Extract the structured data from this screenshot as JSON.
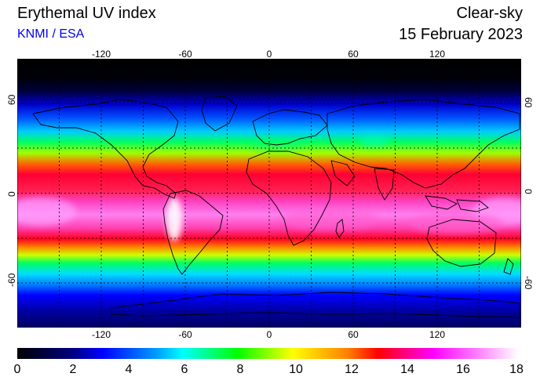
{
  "header": {
    "title": "Erythemal UV index",
    "source": "KNMI / ESA",
    "mode": "Clear-sky",
    "date": "15 February 2023"
  },
  "map": {
    "projection": "equirectangular",
    "lon_range": [
      -180,
      180
    ],
    "lat_range": [
      -90,
      90
    ],
    "top_ticks": [
      "-120",
      "-60",
      "0",
      "60",
      "120"
    ],
    "bottom_ticks": [
      "-120",
      "-60",
      "0",
      "60",
      "120"
    ],
    "left_ticks": [
      "60",
      "0",
      "-60"
    ],
    "right_ticks": [
      "60",
      "0",
      "-60"
    ],
    "grid": "dotted every 30 degrees"
  },
  "colorbar": {
    "min": 0,
    "max": 18,
    "ticks": [
      "0",
      "2",
      "4",
      "6",
      "8",
      "10",
      "12",
      "14",
      "16",
      "18"
    ],
    "colors": [
      "#000000",
      "#0000ff",
      "#00ffff",
      "#00ff00",
      "#ffff00",
      "#ff0000",
      "#ff00ff",
      "#ffffff"
    ]
  }
}
